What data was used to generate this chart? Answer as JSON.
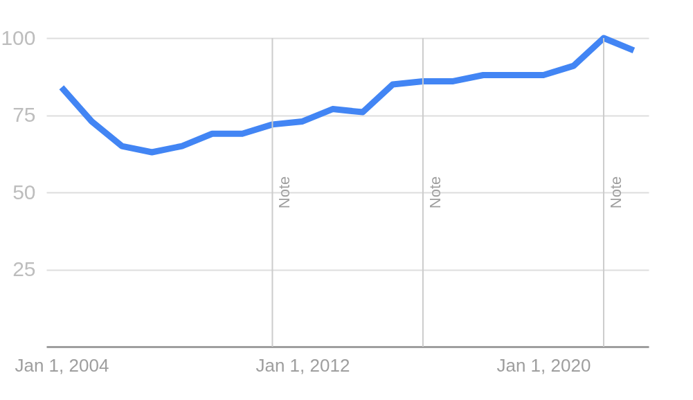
{
  "chart_data": {
    "type": "line",
    "x": [
      "2004",
      "2005",
      "2006",
      "2007",
      "2008",
      "2009",
      "2010",
      "2011",
      "2012",
      "2013",
      "2014",
      "2015",
      "2016",
      "2017",
      "2018",
      "2019",
      "2020",
      "2021",
      "2022",
      "2023"
    ],
    "series": [
      {
        "color": "#4285f4",
        "values": [
          84,
          73,
          65,
          63,
          65,
          69,
          69,
          72,
          73,
          77,
          76,
          85,
          86,
          86,
          88,
          88,
          88,
          91,
          100,
          96
        ]
      }
    ],
    "xlim": [
      "2003-07-01",
      "2023-07-01"
    ],
    "xticks": [
      {
        "value": "2004-01-01",
        "label": "Jan 1, 2004"
      },
      {
        "value": "2012-01-01",
        "label": "Jan 1, 2012"
      },
      {
        "value": "2020-01-01",
        "label": "Jan 1, 2020"
      }
    ],
    "ylim": [
      0,
      100
    ],
    "yticks": [
      25,
      50,
      75,
      100
    ],
    "grid": "y",
    "legend": false,
    "marker": "none",
    "line_style": "solid",
    "ref_lines": [
      {
        "axis": "x",
        "value": "2011-01-01",
        "label": "Note",
        "color": "#cccccc"
      },
      {
        "axis": "x",
        "value": "2016-01-01",
        "label": "Note",
        "color": "#cccccc"
      },
      {
        "axis": "x",
        "value": "2022-01-01",
        "label": "Note",
        "color": "#cccccc"
      }
    ]
  }
}
